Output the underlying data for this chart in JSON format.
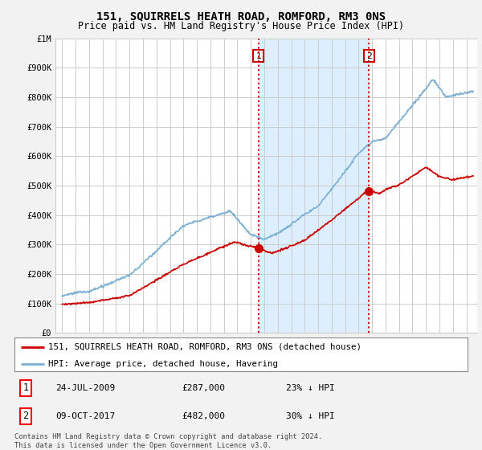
{
  "title": "151, SQUIRRELS HEATH ROAD, ROMFORD, RM3 0NS",
  "subtitle": "Price paid vs. HM Land Registry's House Price Index (HPI)",
  "hpi_label": "HPI: Average price, detached house, Havering",
  "property_label": "151, SQUIRRELS HEATH ROAD, ROMFORD, RM3 0NS (detached house)",
  "hpi_color": "#7ab0d4",
  "property_color": "#cc0000",
  "vline_color": "#cc0000",
  "shade_color": "#ddeeff",
  "ylim": [
    0,
    1000000
  ],
  "yticks": [
    0,
    100000,
    200000,
    300000,
    400000,
    500000,
    600000,
    700000,
    800000,
    900000,
    1000000
  ],
  "ytick_labels": [
    "£0",
    "£100K",
    "£200K",
    "£300K",
    "£400K",
    "£500K",
    "£600K",
    "£700K",
    "£800K",
    "£900K",
    "£1M"
  ],
  "transaction1": {
    "label": "1",
    "date": "24-JUL-2009",
    "price": 287000,
    "pct": "23%",
    "dir": "↓",
    "x": 2009.56
  },
  "transaction2": {
    "label": "2",
    "date": "09-OCT-2017",
    "price": 482000,
    "pct": "30%",
    "dir": "↓",
    "x": 2017.78
  },
  "footnote": "Contains HM Land Registry data © Crown copyright and database right 2024.\nThis data is licensed under the Open Government Licence v3.0.",
  "bg_color": "#f2f2f2",
  "plot_bg_color": "#ffffff",
  "grid_color": "#cccccc"
}
